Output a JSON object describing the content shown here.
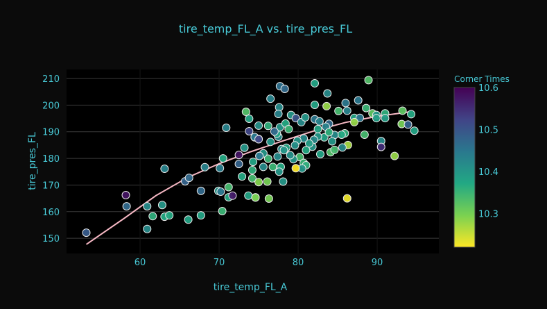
{
  "chart_data": {
    "type": "scatter",
    "title": "tire_temp_FL_A vs. tire_pres_FL",
    "xlabel": "tire_temp_FL_A",
    "ylabel": "tire_pres_FL",
    "xlim": [
      50.7,
      97.8
    ],
    "ylim": [
      144.3,
      213.4
    ],
    "xticks": [
      60,
      70,
      80,
      90
    ],
    "yticks": [
      150,
      160,
      170,
      180,
      190,
      200,
      210
    ],
    "grid": true,
    "colorbar": {
      "title": "Corner Times",
      "range": [
        10.22,
        10.6
      ],
      "ticks": [
        10.3,
        10.4,
        10.5,
        10.6
      ],
      "colorscale": "viridis"
    },
    "trendline": {
      "color": "#f4b6c2",
      "points": [
        [
          53.2,
          147.7
        ],
        [
          58,
          157.5
        ],
        [
          62,
          166
        ],
        [
          66,
          172.8
        ],
        [
          70,
          178
        ],
        [
          74,
          182.5
        ],
        [
          78,
          186.5
        ],
        [
          82,
          190.3
        ],
        [
          86,
          193.5
        ],
        [
          90,
          195.8
        ],
        [
          94.2,
          197.5
        ]
      ]
    },
    "points": [
      [
        53.2,
        152.1,
        10.49
      ],
      [
        58.2,
        166.2,
        10.58
      ],
      [
        58.3,
        162.0,
        10.47
      ],
      [
        60.9,
        162.0,
        10.42
      ],
      [
        60.9,
        153.5,
        10.42
      ],
      [
        61.6,
        158.3,
        10.36
      ],
      [
        62.8,
        162.5,
        10.4
      ],
      [
        63.1,
        158.1,
        10.37
      ],
      [
        63.1,
        176.1,
        10.43
      ],
      [
        63.7,
        158.6,
        10.37
      ],
      [
        65.7,
        171.4,
        10.48
      ],
      [
        66.2,
        172.7,
        10.47
      ],
      [
        66.1,
        157.0,
        10.38
      ],
      [
        67.7,
        167.8,
        10.47
      ],
      [
        67.7,
        158.6,
        10.38
      ],
      [
        68.2,
        176.7,
        10.43
      ],
      [
        69.9,
        167.8,
        10.4
      ],
      [
        70.2,
        167.5,
        10.45
      ],
      [
        70.1,
        176.3,
        10.44
      ],
      [
        70.5,
        180.0,
        10.37
      ],
      [
        70.4,
        160.2,
        10.35
      ],
      [
        70.9,
        191.5,
        10.43
      ],
      [
        71.2,
        169.2,
        10.34
      ],
      [
        71.2,
        165.4,
        10.37
      ],
      [
        71.7,
        166.0,
        10.57
      ],
      [
        72.5,
        181.3,
        10.58
      ],
      [
        72.5,
        177.9,
        10.48
      ],
      [
        72.9,
        173.2,
        10.37
      ],
      [
        73.2,
        184.0,
        10.4
      ],
      [
        73.4,
        197.5,
        10.33
      ],
      [
        73.8,
        194.9,
        10.38
      ],
      [
        73.8,
        190.2,
        10.52
      ],
      [
        74.5,
        187.9,
        10.45
      ],
      [
        75.0,
        192.3,
        10.41
      ],
      [
        75.0,
        187.3,
        10.5
      ],
      [
        75.1,
        180.9,
        10.42
      ],
      [
        74.3,
        178.7,
        10.38
      ],
      [
        74.2,
        175.6,
        10.36
      ],
      [
        74.2,
        172.5,
        10.34
      ],
      [
        73.7,
        166.0,
        10.38
      ],
      [
        74.6,
        165.4,
        10.26
      ],
      [
        75.0,
        171.1,
        10.29
      ],
      [
        76.1,
        171.3,
        10.3
      ],
      [
        82.1,
        208.2,
        10.38
      ],
      [
        88.9,
        209.4,
        10.33
      ],
      [
        77.7,
        207.1,
        10.46
      ],
      [
        78.3,
        206.1,
        10.47
      ],
      [
        83.7,
        204.4,
        10.42
      ],
      [
        76.5,
        202.4,
        10.43
      ],
      [
        87.6,
        201.8,
        10.45
      ],
      [
        82.1,
        200.1,
        10.38
      ],
      [
        83.6,
        199.6,
        10.28
      ],
      [
        86.0,
        200.8,
        10.45
      ],
      [
        77.6,
        199.2,
        10.42
      ],
      [
        77.5,
        196.7,
        10.43
      ],
      [
        85.1,
        197.8,
        10.34
      ],
      [
        86.2,
        197.9,
        10.43
      ],
      [
        88.6,
        198.9,
        10.35
      ],
      [
        89.4,
        196.9,
        10.32
      ],
      [
        89.9,
        196.3,
        10.4
      ],
      [
        91.0,
        196.9,
        10.36
      ],
      [
        91.0,
        195.1,
        10.39
      ],
      [
        93.2,
        197.9,
        10.32
      ],
      [
        94.3,
        196.6,
        10.37
      ],
      [
        79.1,
        196.3,
        10.4
      ],
      [
        79.7,
        195.1,
        10.5
      ],
      [
        80.4,
        193.6,
        10.42
      ],
      [
        80.9,
        195.4,
        10.4
      ],
      [
        82.1,
        194.7,
        10.45
      ],
      [
        82.7,
        193.9,
        10.43
      ],
      [
        83.9,
        193.0,
        10.47
      ],
      [
        83.5,
        191.9,
        10.43
      ],
      [
        82.5,
        191.0,
        10.38
      ],
      [
        87.1,
        195.2,
        10.38
      ],
      [
        87.8,
        195.2,
        10.45
      ],
      [
        87.1,
        193.6,
        10.28
      ],
      [
        89.9,
        195.1,
        10.39
      ],
      [
        93.1,
        192.9,
        10.3
      ],
      [
        93.9,
        192.7,
        10.48
      ],
      [
        94.7,
        190.4,
        10.38
      ],
      [
        88.4,
        188.9,
        10.34
      ],
      [
        90.5,
        186.5,
        10.42
      ],
      [
        90.5,
        184.3,
        10.55
      ],
      [
        92.2,
        180.9,
        10.28
      ],
      [
        86.3,
        185.0,
        10.27
      ],
      [
        85.6,
        184.1,
        10.42
      ],
      [
        85.9,
        189.4,
        10.36
      ],
      [
        85.5,
        188.9,
        10.37
      ],
      [
        84.6,
        188.8,
        10.42
      ],
      [
        84.3,
        186.4,
        10.4
      ],
      [
        83.3,
        187.9,
        10.38
      ],
      [
        83.9,
        189.8,
        10.36
      ],
      [
        82.5,
        188.2,
        10.4
      ],
      [
        82.0,
        187.0,
        10.42
      ],
      [
        81.8,
        184.4,
        10.4
      ],
      [
        81.4,
        185.6,
        10.39
      ],
      [
        80.7,
        187.5,
        10.42
      ],
      [
        79.9,
        186.6,
        10.4
      ],
      [
        79.6,
        184.9,
        10.41
      ],
      [
        81.0,
        183.1,
        10.37
      ],
      [
        82.8,
        181.6,
        10.38
      ],
      [
        84.1,
        182.3,
        10.33
      ],
      [
        84.6,
        183.2,
        10.34
      ],
      [
        80.2,
        180.5,
        10.34
      ],
      [
        80.7,
        178.3,
        10.35
      ],
      [
        81.0,
        177.4,
        10.36
      ],
      [
        80.5,
        176.2,
        10.4
      ],
      [
        79.7,
        176.3,
        10.22
      ],
      [
        79.4,
        179.7,
        10.4
      ],
      [
        79.0,
        181.2,
        10.41
      ],
      [
        78.5,
        184.0,
        10.38
      ],
      [
        77.9,
        183.5,
        10.42
      ],
      [
        78.2,
        183.1,
        10.4
      ],
      [
        77.4,
        180.7,
        10.42
      ],
      [
        76.2,
        179.9,
        10.35
      ],
      [
        75.6,
        181.9,
        10.4
      ],
      [
        75.1,
        180.9,
        10.45
      ],
      [
        76.5,
        186.2,
        10.4
      ],
      [
        77.5,
        188.1,
        10.42
      ],
      [
        77.3,
        189.3,
        10.38
      ],
      [
        77.7,
        191.7,
        10.4
      ],
      [
        77.0,
        190.1,
        10.47
      ],
      [
        78.4,
        193.1,
        10.37
      ],
      [
        78.8,
        191.0,
        10.35
      ],
      [
        76.2,
        192.2,
        10.36
      ],
      [
        74.5,
        188.0,
        10.45
      ],
      [
        75.0,
        187.2,
        10.52
      ],
      [
        75.6,
        176.8,
        10.42
      ],
      [
        76.8,
        176.8,
        10.35
      ],
      [
        77.8,
        176.8,
        10.37
      ],
      [
        77.6,
        175.0,
        10.4
      ],
      [
        78.1,
        171.3,
        10.4
      ],
      [
        74.6,
        165.3,
        10.3
      ],
      [
        76.3,
        164.9,
        10.3
      ],
      [
        86.2,
        165.0,
        10.23
      ]
    ]
  }
}
